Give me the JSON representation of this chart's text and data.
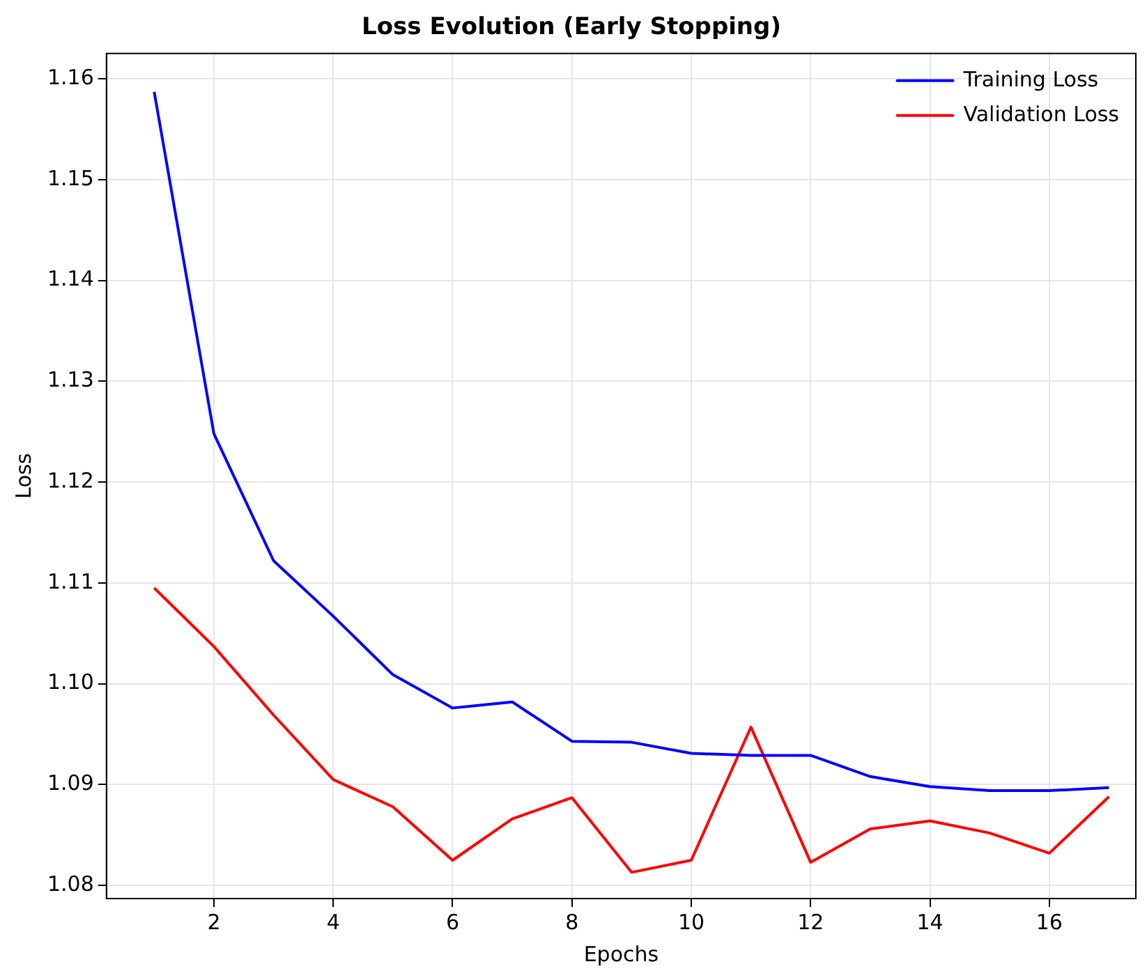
{
  "chart_data": {
    "type": "line",
    "title": "Loss Evolution (Early Stopping)",
    "xlabel": "Epochs",
    "ylabel": "Loss",
    "x": [
      1,
      2,
      3,
      4,
      5,
      6,
      7,
      8,
      9,
      10,
      11,
      12,
      13,
      14,
      15,
      16,
      17
    ],
    "series": [
      {
        "name": "Training Loss",
        "color": "#0000ff",
        "values": [
          1.1587,
          1.1248,
          1.1122,
          1.1067,
          1.1009,
          1.0976,
          1.0982,
          1.0943,
          1.0942,
          1.0931,
          1.0929,
          1.0929,
          1.0908,
          1.0898,
          1.0894,
          1.0894,
          1.0897
        ]
      },
      {
        "name": "Validation Loss",
        "color": "#ff0000",
        "values": [
          1.1095,
          1.1037,
          1.0969,
          1.0905,
          1.0878,
          1.0825,
          1.0866,
          1.0887,
          1.0813,
          1.0825,
          1.0957,
          1.0823,
          1.0856,
          1.0864,
          1.0852,
          1.0832,
          1.0888
        ]
      }
    ],
    "xlim": [
      0.2,
      17.45
    ],
    "xticks": [
      2,
      4,
      6,
      8,
      10,
      12,
      14,
      16
    ],
    "ylim": [
      1.0787,
      1.1625
    ],
    "yticks": [
      {
        "value": 1.08,
        "label": "1.08"
      },
      {
        "value": 1.09,
        "label": "1.09"
      },
      {
        "value": 1.1,
        "label": "1.10"
      },
      {
        "value": 1.11,
        "label": "1.11"
      },
      {
        "value": 1.12,
        "label": "1.12"
      },
      {
        "value": 1.13,
        "label": "1.13"
      },
      {
        "value": 1.14,
        "label": "1.14"
      },
      {
        "value": 1.15,
        "label": "1.15"
      },
      {
        "value": 1.16,
        "label": "1.16"
      }
    ],
    "grid": true,
    "legend": "top right",
    "marker": "none",
    "line_style": "solid"
  }
}
